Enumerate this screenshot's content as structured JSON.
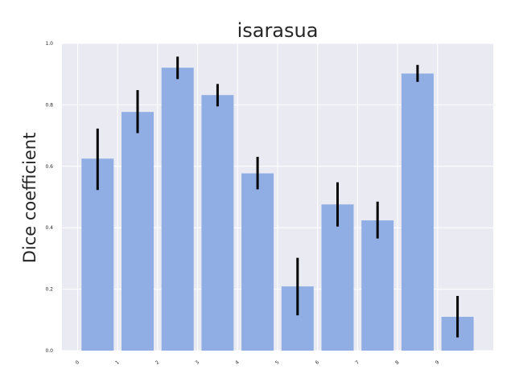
{
  "chart_data": {
    "type": "bar",
    "title": "isarasua",
    "xlabel": "",
    "ylabel": "Dice coefficient",
    "categories": [
      "0",
      "1",
      "2",
      "3",
      "4",
      "5",
      "6",
      "7",
      "8",
      "9"
    ],
    "values": [
      0.625,
      0.777,
      0.921,
      0.832,
      0.577,
      0.209,
      0.476,
      0.424,
      0.902,
      0.11
    ],
    "error_low": [
      0.523,
      0.708,
      0.884,
      0.795,
      0.525,
      0.115,
      0.404,
      0.365,
      0.875,
      0.043
    ],
    "error_high": [
      0.723,
      0.848,
      0.957,
      0.868,
      0.631,
      0.302,
      0.548,
      0.485,
      0.93,
      0.178
    ],
    "ylim": [
      0,
      1.0
    ],
    "yticks": [
      "0.0",
      "0.2",
      "0.4",
      "0.6",
      "0.8",
      "1.0"
    ],
    "grid": true,
    "colors": {
      "bar": "#90aee3",
      "error": "#000000",
      "background": "#eaeaf2",
      "grid": "#ffffff"
    }
  }
}
